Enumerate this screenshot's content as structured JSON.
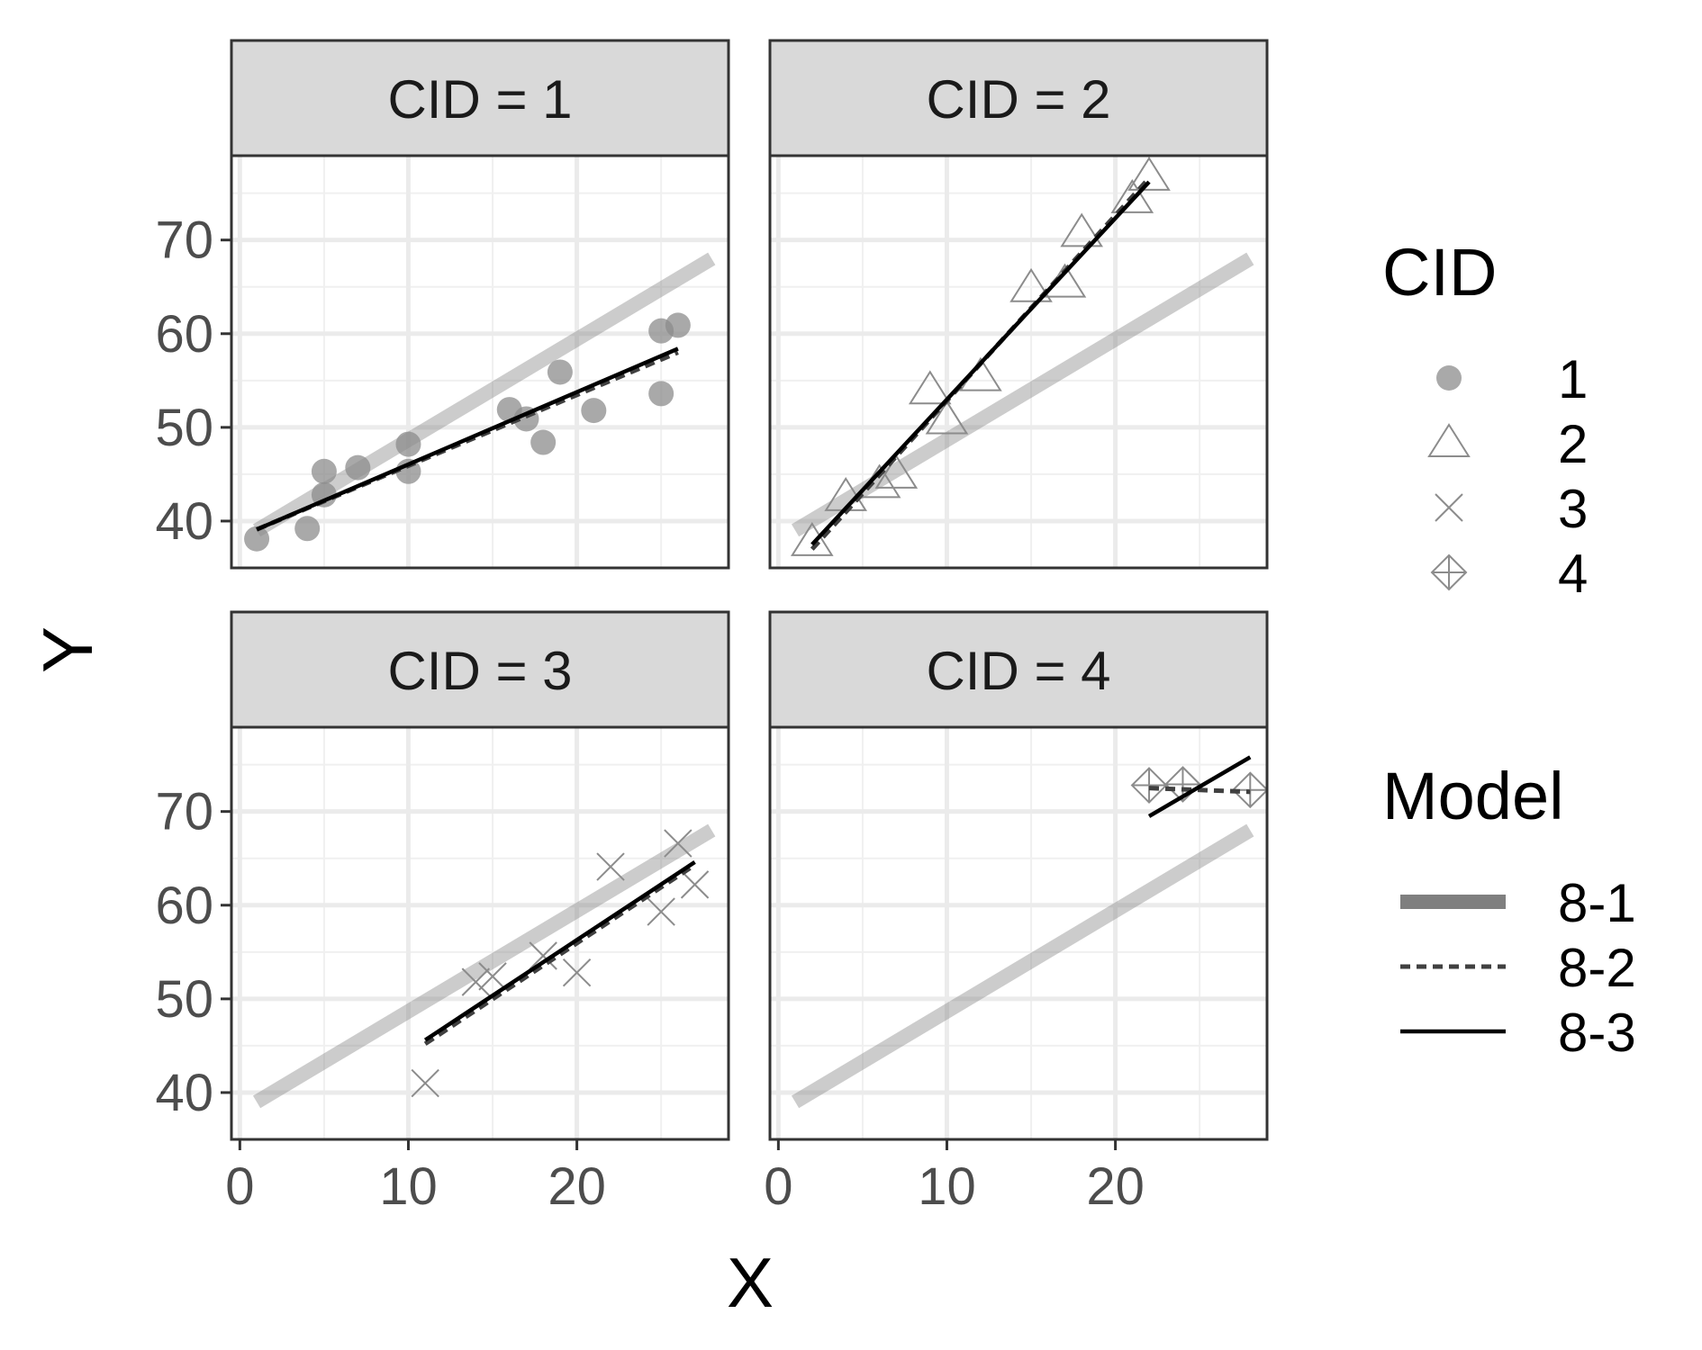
{
  "chart_data": {
    "type": "scatter",
    "facet_variable": "CID",
    "xlabel": "X",
    "ylabel": "Y",
    "xlim": [
      -0.5,
      29
    ],
    "ylim": [
      35,
      79
    ],
    "x_ticks": [
      "0",
      "10",
      "20"
    ],
    "y_ticks": [
      "40",
      "50",
      "60",
      "70"
    ],
    "grid": true,
    "legend_position": "right",
    "legend_cid": {
      "title": "CID",
      "items": [
        {
          "label": "1",
          "shape": "filled-circle"
        },
        {
          "label": "2",
          "shape": "open-triangle"
        },
        {
          "label": "3",
          "shape": "cross"
        },
        {
          "label": "4",
          "shape": "diamond-plus"
        }
      ]
    },
    "legend_model": {
      "title": "Model",
      "items": [
        {
          "label": "8-1",
          "style": "thick-gray"
        },
        {
          "label": "8-2",
          "style": "dashed"
        },
        {
          "label": "8-3",
          "style": "solid"
        }
      ]
    },
    "model_8_1_line": {
      "x": [
        1,
        28
      ],
      "y": [
        39,
        68
      ]
    },
    "panels": [
      {
        "strip_label": "CID = 1",
        "shape": "filled-circle",
        "points": [
          [
            1,
            38.1
          ],
          [
            4,
            39.2
          ],
          [
            5,
            42.8
          ],
          [
            5,
            45.3
          ],
          [
            7,
            45.7
          ],
          [
            10,
            45.3
          ],
          [
            10,
            48.2
          ],
          [
            16,
            51.9
          ],
          [
            17,
            50.9
          ],
          [
            18,
            48.4
          ],
          [
            19,
            55.9
          ],
          [
            21,
            51.8
          ],
          [
            25,
            53.6
          ],
          [
            25,
            60.3
          ],
          [
            26,
            60.9
          ]
        ],
        "line_8_2": {
          "x": [
            1,
            26
          ],
          "y": [
            39.1,
            58.0
          ]
        },
        "line_8_3": {
          "x": [
            1,
            26
          ],
          "y": [
            39.1,
            58.4
          ]
        }
      },
      {
        "strip_label": "CID = 2",
        "shape": "open-triangle",
        "points": [
          [
            2,
            37.8
          ],
          [
            4,
            42.6
          ],
          [
            6,
            44.0
          ],
          [
            7,
            45.0
          ],
          [
            9,
            54.0
          ],
          [
            10,
            50.8
          ],
          [
            12,
            55.4
          ],
          [
            15,
            64.9
          ],
          [
            17,
            65.4
          ],
          [
            18,
            70.8
          ],
          [
            21,
            74.4
          ],
          [
            22,
            76.8
          ]
        ],
        "line_8_2": {
          "x": [
            2,
            22
          ],
          "y": [
            37.0,
            76.6
          ]
        },
        "line_8_3": {
          "x": [
            2,
            22
          ],
          "y": [
            37.5,
            76.2
          ]
        }
      },
      {
        "strip_label": "CID = 3",
        "shape": "cross",
        "points": [
          [
            11,
            41.0
          ],
          [
            14,
            51.8
          ],
          [
            15,
            52.4
          ],
          [
            18,
            54.6
          ],
          [
            20,
            52.8
          ],
          [
            22,
            64.1
          ],
          [
            25,
            59.3
          ],
          [
            26,
            66.6
          ],
          [
            27,
            62.2
          ]
        ],
        "line_8_2": {
          "x": [
            11,
            27
          ],
          "y": [
            45.2,
            64.3
          ]
        },
        "line_8_3": {
          "x": [
            11,
            27
          ],
          "y": [
            45.6,
            64.6
          ]
        }
      },
      {
        "strip_label": "CID = 4",
        "shape": "diamond-plus",
        "points": [
          [
            22,
            72.8
          ],
          [
            24,
            72.9
          ],
          [
            28,
            72.3
          ]
        ],
        "line_8_2": {
          "x": [
            22,
            28
          ],
          "y": [
            72.5,
            72.1
          ]
        },
        "line_8_3": {
          "x": [
            22,
            28
          ],
          "y": [
            69.5,
            75.8
          ]
        }
      }
    ]
  }
}
